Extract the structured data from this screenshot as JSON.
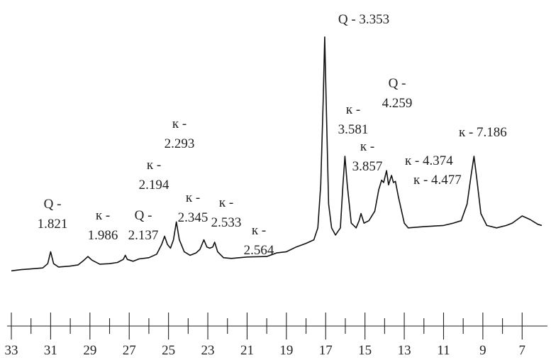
{
  "chart_data": {
    "type": "line",
    "title": "",
    "xlabel": "",
    "ylabel": "",
    "x_reversed": true,
    "xlim": [
      33,
      6
    ],
    "major_ticks": [
      33,
      31,
      29,
      27,
      25,
      23,
      21,
      19,
      17,
      15,
      13,
      11,
      9,
      7
    ],
    "minor_ticks": [
      32,
      30,
      28,
      26,
      24,
      22,
      20,
      18,
      16,
      14,
      12,
      10,
      8
    ],
    "tick_labels": [
      "33",
      "31",
      "29",
      "27",
      "25",
      "23",
      "21",
      "19",
      "17",
      "15",
      "13",
      "11",
      "9",
      "7"
    ],
    "intensity_units": "relative (no axis shown)",
    "series": [
      {
        "points": [
          [
            33.0,
            0.02
          ],
          [
            32.5,
            0.025
          ],
          [
            32.0,
            0.028
          ],
          [
            31.4,
            0.032
          ],
          [
            31.15,
            0.05
          ],
          [
            31.0,
            0.1
          ],
          [
            30.85,
            0.05
          ],
          [
            30.6,
            0.036
          ],
          [
            30.0,
            0.04
          ],
          [
            29.6,
            0.045
          ],
          [
            29.3,
            0.065
          ],
          [
            29.1,
            0.08
          ],
          [
            28.9,
            0.065
          ],
          [
            28.5,
            0.048
          ],
          [
            28.0,
            0.05
          ],
          [
            27.6,
            0.055
          ],
          [
            27.3,
            0.068
          ],
          [
            27.2,
            0.085
          ],
          [
            27.1,
            0.068
          ],
          [
            26.8,
            0.06
          ],
          [
            26.5,
            0.07
          ],
          [
            26.0,
            0.075
          ],
          [
            25.6,
            0.09
          ],
          [
            25.35,
            0.13
          ],
          [
            25.2,
            0.165
          ],
          [
            25.05,
            0.13
          ],
          [
            24.9,
            0.115
          ],
          [
            24.75,
            0.15
          ],
          [
            24.6,
            0.225
          ],
          [
            24.45,
            0.15
          ],
          [
            24.2,
            0.1
          ],
          [
            23.9,
            0.085
          ],
          [
            23.6,
            0.095
          ],
          [
            23.4,
            0.11
          ],
          [
            23.2,
            0.15
          ],
          [
            23.05,
            0.12
          ],
          [
            22.9,
            0.115
          ],
          [
            22.75,
            0.12
          ],
          [
            22.65,
            0.14
          ],
          [
            22.5,
            0.1
          ],
          [
            22.2,
            0.075
          ],
          [
            21.8,
            0.072
          ],
          [
            21.0,
            0.078
          ],
          [
            20.0,
            0.08
          ],
          [
            19.5,
            0.095
          ],
          [
            19.0,
            0.1
          ],
          [
            18.5,
            0.12
          ],
          [
            18.0,
            0.135
          ],
          [
            17.6,
            0.15
          ],
          [
            17.4,
            0.2
          ],
          [
            17.25,
            0.38
          ],
          [
            17.12,
            0.75
          ],
          [
            17.05,
            1.0
          ],
          [
            16.98,
            0.75
          ],
          [
            16.85,
            0.3
          ],
          [
            16.7,
            0.2
          ],
          [
            16.5,
            0.17
          ],
          [
            16.25,
            0.2
          ],
          [
            16.12,
            0.38
          ],
          [
            16.02,
            0.5
          ],
          [
            15.9,
            0.38
          ],
          [
            15.7,
            0.22
          ],
          [
            15.45,
            0.2
          ],
          [
            15.3,
            0.23
          ],
          [
            15.2,
            0.26
          ],
          [
            15.05,
            0.22
          ],
          [
            14.8,
            0.23
          ],
          [
            14.5,
            0.27
          ],
          [
            14.3,
            0.36
          ],
          [
            14.15,
            0.4
          ],
          [
            14.05,
            0.39
          ],
          [
            13.9,
            0.44
          ],
          [
            13.8,
            0.38
          ],
          [
            13.65,
            0.42
          ],
          [
            13.55,
            0.39
          ],
          [
            13.45,
            0.395
          ],
          [
            13.3,
            0.33
          ],
          [
            13.0,
            0.22
          ],
          [
            12.8,
            0.2
          ],
          [
            12.0,
            0.205
          ],
          [
            11.0,
            0.21
          ],
          [
            10.5,
            0.22
          ],
          [
            10.1,
            0.23
          ],
          [
            9.8,
            0.3
          ],
          [
            9.6,
            0.42
          ],
          [
            9.45,
            0.5
          ],
          [
            9.3,
            0.4
          ],
          [
            9.1,
            0.26
          ],
          [
            8.8,
            0.21
          ],
          [
            8.3,
            0.2
          ],
          [
            7.8,
            0.21
          ],
          [
            7.5,
            0.22
          ],
          [
            7.0,
            0.25
          ],
          [
            6.6,
            0.235
          ],
          [
            6.2,
            0.215
          ],
          [
            6.0,
            0.21
          ]
        ]
      }
    ],
    "annotations": [
      {
        "lines": [
          "Q -",
          "1.821"
        ],
        "x": 31.0
      },
      {
        "lines": [
          "к -",
          "1.986"
        ],
        "x": 29.1
      },
      {
        "lines": [
          "Q -",
          "2.137"
        ],
        "x": 27.2
      },
      {
        "lines": [
          "к -",
          "2.194"
        ],
        "x": 25.2
      },
      {
        "lines": [
          "к -",
          "2.293"
        ],
        "x": 24.6
      },
      {
        "lines": [
          "к -",
          "2.345"
        ],
        "x": 24.6
      },
      {
        "lines": [
          "к -",
          "2.533"
        ],
        "x": 23.2
      },
      {
        "lines": [
          "к -",
          "2.564"
        ],
        "x": 22.65
      },
      {
        "lines": [
          "Q - 3.353"
        ],
        "x": 17.05
      },
      {
        "lines": [
          "к -",
          "3.581"
        ],
        "x": 16.02
      },
      {
        "lines": [
          "к -",
          "3.857"
        ],
        "x": 15.2
      },
      {
        "lines": [
          "Q -",
          "4.259"
        ],
        "x": 13.9
      },
      {
        "lines": [
          "к - 4.374"
        ],
        "x": 13.65
      },
      {
        "lines": [
          "к - 4.477"
        ],
        "x": 13.45
      },
      {
        "lines": [
          "к - 7.186"
        ],
        "x": 9.45
      }
    ]
  }
}
